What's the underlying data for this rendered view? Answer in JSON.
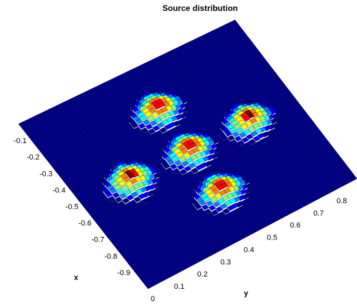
{
  "chart_data": {
    "type": "surface",
    "title": "Source distribution",
    "xlabel": "x",
    "ylabel": "y",
    "x_ticks": [
      "-0.9",
      "-0.8",
      "-0.7",
      "-0.6",
      "-0.5",
      "-0.4",
      "-0.3",
      "-0.2",
      "-0.1"
    ],
    "y_ticks": [
      "0",
      "0.1",
      "0.2",
      "0.3",
      "0.4",
      "0.5",
      "0.6",
      "0.7",
      "0.8"
    ],
    "xlim": [
      -1.0,
      0.0
    ],
    "ylim": [
      0.0,
      0.9
    ],
    "grid_size": 48,
    "peaks": [
      {
        "x": -0.75,
        "y": 0.45,
        "height": 1.0,
        "width": 0.09
      },
      {
        "x": -0.5,
        "y": 0.2,
        "height": 1.0,
        "width": 0.09
      },
      {
        "x": -0.5,
        "y": 0.45,
        "height": 1.0,
        "width": 0.09
      },
      {
        "x": -0.5,
        "y": 0.7,
        "height": 1.0,
        "width": 0.09
      },
      {
        "x": -0.25,
        "y": 0.45,
        "height": 1.0,
        "width": 0.09
      }
    ],
    "colormap": [
      "#00008f",
      "#0000ff",
      "#0080ff",
      "#00ffff",
      "#80ff80",
      "#ffff00",
      "#ff8000",
      "#ff0000",
      "#800000"
    ],
    "edge_color": "#000000"
  }
}
